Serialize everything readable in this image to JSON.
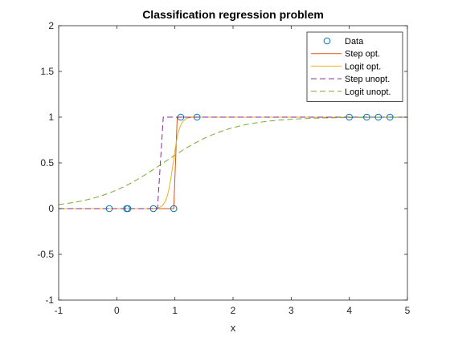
{
  "chart_data": {
    "type": "line",
    "title": "Classification regression problem",
    "xlabel": "x",
    "ylabel": "",
    "xlim": [
      -1,
      5
    ],
    "ylim": [
      -1,
      2
    ],
    "xticks": [
      "-1",
      "0",
      "1",
      "2",
      "3",
      "4",
      "5"
    ],
    "yticks": [
      "-1",
      "-0.5",
      "0",
      "0.5",
      "1",
      "1.5",
      "2"
    ],
    "xtick_values": [
      -1,
      0,
      1,
      2,
      3,
      4,
      5
    ],
    "ytick_values": [
      -1,
      -0.5,
      0,
      0.5,
      1,
      1.5,
      2
    ],
    "grid": false,
    "legend_position": "top-right",
    "series": [
      {
        "name": "Data",
        "kind": "scatter",
        "color": "#0072BD",
        "x": [
          -0.13,
          0.17,
          0.19,
          0.63,
          0.98,
          1.1,
          1.38,
          4.0,
          4.3,
          4.5,
          4.7
        ],
        "y": [
          0,
          0,
          0,
          0,
          0,
          1,
          1,
          1,
          1,
          1,
          1
        ]
      },
      {
        "name": "Step opt.",
        "kind": "line",
        "color": "#D95319",
        "dash": "solid",
        "x": [
          -1,
          0.98,
          1.04,
          5
        ],
        "y": [
          0,
          0,
          1,
          1
        ]
      },
      {
        "name": "Logit opt.",
        "kind": "logistic",
        "color": "#EDB120",
        "dash": "solid",
        "center": 0.97,
        "slope": 18
      },
      {
        "name": "Step unopt.",
        "kind": "line",
        "color": "#7E2F8E",
        "dash": "dashed",
        "x": [
          -1,
          0.7,
          0.8,
          5
        ],
        "y": [
          0,
          0,
          1,
          1
        ]
      },
      {
        "name": "Logit unopt.",
        "kind": "logistic",
        "color": "#77AC30",
        "dash": "dashed",
        "center": 0.8,
        "slope": 1.7
      }
    ]
  }
}
